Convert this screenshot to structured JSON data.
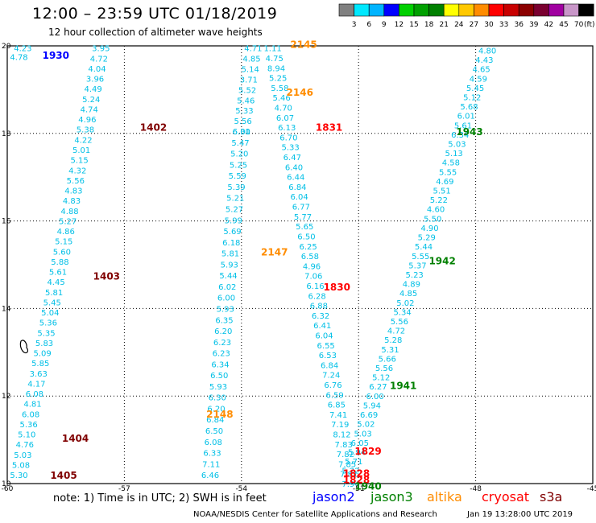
{
  "header": {
    "title": "12:00 – 23:59 UTC 01/18/2019",
    "subtitle": "12 hour collection of altimeter wave heights"
  },
  "colorbar": {
    "colors": [
      "#808080",
      "#00e8ff",
      "#00b4ff",
      "#0000ff",
      "#00d000",
      "#00a000",
      "#008000",
      "#ffff00",
      "#ffc800",
      "#ff8c00",
      "#ff0000",
      "#c80000",
      "#8b0000",
      "#7a0030",
      "#a000a0",
      "#c896c8",
      "#000000"
    ],
    "labels": [
      "3",
      "6",
      "9",
      "12",
      "15",
      "18",
      "21",
      "24",
      "27",
      "30",
      "33",
      "36",
      "39",
      "42",
      "45",
      "70"
    ],
    "unit": "(ft)"
  },
  "axes": {
    "x_ticks": [
      "-60",
      "-57",
      "-54",
      "-51",
      "-48",
      "-45"
    ],
    "y_ticks": [
      "10",
      "12",
      "14",
      "16",
      "18",
      "20"
    ]
  },
  "satellites": {
    "jason2": {
      "label": "jason2",
      "color": "#0000ff"
    },
    "jason3": {
      "label": "jason3",
      "color": "#008000"
    },
    "altika": {
      "label": "altika",
      "color": "#ff8c00"
    },
    "cryosat": {
      "label": "cryosat",
      "color": "#ff0000"
    },
    "s3a": {
      "label": "s3a",
      "color": "#800000"
    }
  },
  "footer": {
    "note": "note:  1) Time is in UTC;  2) SWH is in feet",
    "credit": "NOAA/NESDIS Center for Satellite Applications and Research",
    "generated": "Jan 19 13:28:00 UTC 2019"
  },
  "track_labels": [
    {
      "id": "1930",
      "sat": "jason2",
      "lon": -59.1,
      "lat": 19.8
    },
    {
      "id": "1402",
      "sat": "s3a",
      "lon": -56.6,
      "lat": 18.15
    },
    {
      "id": "1403",
      "sat": "s3a",
      "lon": -57.8,
      "lat": 14.75
    },
    {
      "id": "1404",
      "sat": "s3a",
      "lon": -58.6,
      "lat": 11.05
    },
    {
      "id": "1405",
      "sat": "s3a",
      "lon": -58.9,
      "lat": 10.2
    },
    {
      "id": "2145",
      "sat": "altika",
      "lon": -52.75,
      "lat": 20.05
    },
    {
      "id": "2146",
      "sat": "altika",
      "lon": -52.85,
      "lat": 18.95
    },
    {
      "id": "2147",
      "sat": "altika",
      "lon": -53.5,
      "lat": 15.3
    },
    {
      "id": "2148",
      "sat": "altika",
      "lon": -54.9,
      "lat": 11.6
    },
    {
      "id": "1831",
      "sat": "cryosat",
      "lon": -52.1,
      "lat": 18.15
    },
    {
      "id": "1830",
      "sat": "cryosat",
      "lon": -51.9,
      "lat": 14.5
    },
    {
      "id": "1829",
      "sat": "cryosat",
      "lon": -51.1,
      "lat": 10.75
    },
    {
      "id": "1828",
      "sat": "cryosat",
      "lon": -51.4,
      "lat": 10.25
    },
    {
      "id": "1828",
      "sat": "cryosat",
      "lon": -51.4,
      "lat": 10.1
    },
    {
      "id": "1943",
      "sat": "jason3",
      "lon": -48.5,
      "lat": 18.05
    },
    {
      "id": "1942",
      "sat": "jason3",
      "lon": -49.2,
      "lat": 15.1
    },
    {
      "id": "1941",
      "sat": "jason3",
      "lon": -50.2,
      "lat": 12.25
    },
    {
      "id": "1940",
      "sat": "jason3",
      "lon": -51.1,
      "lat": 9.95
    }
  ],
  "tracks": [
    {
      "name": "s3a-west",
      "sat": "s3a",
      "color": "#00bfe6",
      "start": [
        -57.6,
        19.95
      ],
      "end": [
        -59.7,
        10.2
      ],
      "values": [
        "3.95",
        "4.72",
        "4.04",
        "3.96",
        "4.49",
        "5.24",
        "4.74",
        "4.96",
        "5.38",
        "4.22",
        "5.01",
        "5.15",
        "4.32",
        "5.56",
        "4.83",
        "4.83",
        "4.88",
        "5.27",
        "4.86",
        "5.15",
        "5.60",
        "5.88",
        "5.61",
        "4.45",
        "5.81",
        "5.45",
        "5.04",
        "5.36",
        "5.35",
        "5.83",
        "5.09",
        "5.85",
        "3.63",
        "4.17",
        "6.08",
        "4.81",
        "6.08",
        "5.36",
        "5.10",
        "4.76",
        "5.03",
        "5.08",
        "5.30"
      ]
    },
    {
      "name": "jason2-stub",
      "sat": "jason2",
      "color": "#00bfe6",
      "start": [
        -59.6,
        19.95
      ],
      "end": [
        -59.7,
        19.75
      ],
      "values": [
        "4.23",
        "4.78"
      ]
    },
    {
      "name": "altika-2146",
      "sat": "altika",
      "color": "#00bfe6",
      "start": [
        -53.7,
        19.95
      ],
      "end": [
        -54.0,
        18.05
      ],
      "values": [
        "4.71",
        "4.85",
        "5.14",
        "3.71",
        "5.52",
        "5.46",
        "5.33",
        "5.56",
        "6.00"
      ]
    },
    {
      "name": "altika-2147",
      "sat": "altika",
      "color": "#00bfe6",
      "start": [
        -54.0,
        18.05
      ],
      "end": [
        -54.8,
        10.2
      ],
      "values": [
        "6.31",
        "5.47",
        "5.20",
        "5.25",
        "5.59",
        "5.39",
        "5.21",
        "5.27",
        "5.99",
        "5.69",
        "6.18",
        "5.81",
        "5.93",
        "5.44",
        "6.02",
        "6.00",
        "5.93",
        "6.35",
        "6.20",
        "6.23",
        "6.23",
        "6.34",
        "6.50",
        "5.93",
        "6.30",
        "6.20",
        "6.84",
        "6.50",
        "6.08",
        "6.33",
        "7.11",
        "6.46"
      ]
    },
    {
      "name": "cryosat-1831",
      "sat": "cryosat",
      "color": "#00bfe6",
      "start": [
        -53.2,
        19.95
      ],
      "end": [
        -51.2,
        10.0
      ],
      "values": [
        "1.11",
        "4.75",
        "8.94",
        "5.25",
        "5.58",
        "5.46",
        "4.70",
        "6.07",
        "6.13",
        "6.70",
        "5.33",
        "6.47",
        "6.40",
        "6.44",
        "6.84",
        "6.04",
        "6.77",
        "5.77",
        "5.65",
        "6.50",
        "6.25",
        "6.58",
        "4.96",
        "7.06",
        "6.16",
        "6.28",
        "6.88",
        "6.32",
        "6.41",
        "6.04",
        "6.55",
        "6.53",
        "6.84",
        "7.24",
        "6.76",
        "6.59",
        "6.85",
        "7.41",
        "7.19",
        "8.12",
        "7.83",
        "7.82",
        "7.85",
        "7.81",
        "7.94"
      ]
    },
    {
      "name": "jason3-east",
      "sat": "jason3",
      "color": "#00bfe6",
      "start": [
        -47.7,
        19.9
      ],
      "end": [
        -51.2,
        10.3
      ],
      "values": [
        "4.80",
        "4.43",
        "4.65",
        "4.59",
        "5.45",
        "5.12",
        "5.68",
        "6.01",
        "5.61",
        "6.34",
        "5.03",
        "5.13",
        "4.58",
        "5.55",
        "4.69",
        "5.51",
        "5.22",
        "4.60",
        "5.50",
        "4.90",
        "5.29",
        "5.44",
        "5.55",
        "5.37",
        "5.23",
        "4.89",
        "4.85",
        "5.02",
        "5.34",
        "5.56",
        "4.72",
        "5.28",
        "5.31",
        "5.66",
        "5.56",
        "5.12",
        "6.27",
        "6.00",
        "5.94",
        "6.69",
        "5.02",
        "5.03",
        "6.05",
        "5.94",
        "5.71",
        "5.22"
      ]
    }
  ]
}
